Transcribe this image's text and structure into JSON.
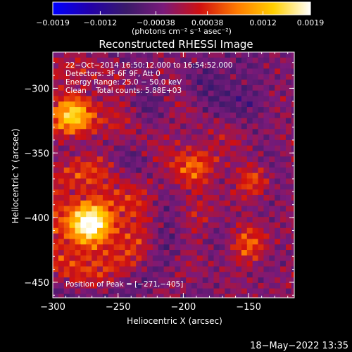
{
  "chart_data": {
    "type": "heatmap",
    "title": "Reconstructed RHESSI Image",
    "xlabel": "Heliocentric X (arcsec)",
    "ylabel": "Heliocentric Y (arcsec)",
    "xlim": [
      -300,
      -115
    ],
    "ylim": [
      -462,
      -272
    ],
    "x_ticks": [
      -300,
      -250,
      -200,
      -150
    ],
    "x_tick_labels": [
      "−300",
      "−250",
      "−200",
      "−150"
    ],
    "y_ticks": [
      -300,
      -350,
      -400,
      -450
    ],
    "y_tick_labels": [
      "−300",
      "−350",
      "−400",
      "−450"
    ],
    "colorbar": {
      "range": [
        -0.0019,
        0.0019
      ],
      "ticks": [
        -0.0019,
        -0.0012,
        -0.00038,
        0.00038,
        0.0012,
        0.0019
      ],
      "tick_labels": [
        "−0.0019",
        "−0.0012",
        "−0.00038",
        "0.00038",
        "0.0012",
        "0.0019"
      ],
      "unit_label": "(photons cm⁻² s⁻¹ asec⁻²)",
      "colormap": [
        "#0000ff",
        "#2200aa",
        "#3a1a6a",
        "#7a1a7a",
        "#d01010",
        "#ff7a00",
        "#ffd000",
        "#ffffff"
      ]
    },
    "info_lines": [
      "22−Oct−2014 16:50:12.000 to 16:54:52.000",
      "Detectors: 3F 6F 9F, Att 0",
      "Energy Range: 25.0 − 50.0 keV",
      "Clean    Total counts: 5.88E+03"
    ],
    "peak_label": "Position of Peak = [−271,−405]",
    "peak": [
      -271,
      -405
    ],
    "sources": [
      {
        "x": -272,
        "y": -405,
        "amp": 0.0019,
        "sigma": 20
      },
      {
        "x": -285,
        "y": -320,
        "amp": 0.0013,
        "sigma": 17
      },
      {
        "x": -190,
        "y": -360,
        "amp": 0.0008,
        "sigma": 16
      },
      {
        "x": -150,
        "y": -420,
        "amp": 0.0006,
        "sigma": 14
      },
      {
        "x": -145,
        "y": -370,
        "amp": 0.0005,
        "sigma": 10
      },
      {
        "x": -165,
        "y": -300,
        "amp": -0.0003,
        "sigma": 18
      }
    ],
    "background": -0.00025
  },
  "footer": {
    "timestamp": "18−May−2022 13:35"
  }
}
